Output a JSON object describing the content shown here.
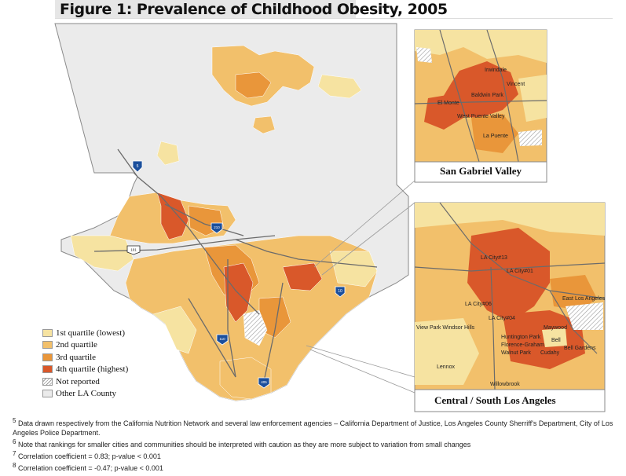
{
  "title": "Figure 1: Prevalence of Childhood Obesity, 2005",
  "colors": {
    "q1": "#f6e3a1",
    "q2": "#f2c06b",
    "q3": "#e9963a",
    "q4": "#d9582a",
    "other": "#e8e8e8",
    "border": "#9a9a9a"
  },
  "legend": [
    {
      "label": "1st quartile (lowest)",
      "color_key": "q1"
    },
    {
      "label": "2nd quartile",
      "color_key": "q2"
    },
    {
      "label": "3rd quartile",
      "color_key": "q3"
    },
    {
      "label": "4th quartile (highest)",
      "color_key": "q4"
    },
    {
      "label": "Not reported",
      "color_key": "hatch"
    },
    {
      "label": "Other LA County",
      "color_key": "other"
    }
  ],
  "highway_shields": [
    "5",
    "210",
    "101",
    "10",
    "110",
    "405",
    "710"
  ],
  "inset_sgv": {
    "title": "San Gabriel Valley",
    "places": [
      "Irwindale",
      "Baldwin Park",
      "Vincent",
      "El Monte",
      "West Puente Valley",
      "La Puente"
    ]
  },
  "inset_la": {
    "title": "Central / South Los Angeles",
    "places": [
      "LA City#13",
      "LA City#01",
      "LA City#06",
      "LA City#04",
      "East Los Angeles",
      "View Park Windsor Hills",
      "Maywood",
      "Huntington Park",
      "Bell",
      "Bell Gardens",
      "Florence-Graham",
      "Walnut Park",
      "Cudahy",
      "Lennox",
      "Willowbrook"
    ]
  },
  "footnotes": [
    {
      "num": "5",
      "text": "Data drawn respectively from the California Nutrition Network and several law enforcement agencies – California Department of Justice, Los Angeles County Sherriff's Department, City of Los Angeles Police Department."
    },
    {
      "num": "6",
      "text": "Note that rankings for smaller cities and communities should be interpreted with caution as they are more subject to variation from small changes"
    },
    {
      "num": "7",
      "text": "Correlation coefficient = 0.83; p-value < 0.001"
    },
    {
      "num": "8",
      "text": "Correlation coefficient = -0.47; p-value < 0.001"
    }
  ]
}
